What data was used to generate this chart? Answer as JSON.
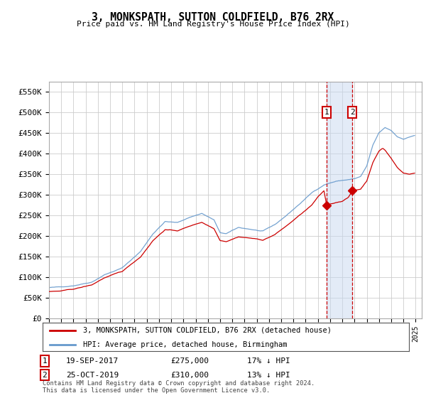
{
  "title": "3, MONKSPATH, SUTTON COLDFIELD, B76 2RX",
  "subtitle": "Price paid vs. HM Land Registry's House Price Index (HPI)",
  "ylim": [
    0,
    575000
  ],
  "yticks": [
    0,
    50000,
    100000,
    150000,
    200000,
    250000,
    300000,
    350000,
    400000,
    450000,
    500000,
    550000
  ],
  "ytick_labels": [
    "£0",
    "£50K",
    "£100K",
    "£150K",
    "£200K",
    "£250K",
    "£300K",
    "£350K",
    "£400K",
    "£450K",
    "£500K",
    "£550K"
  ],
  "legend_line1": "3, MONKSPATH, SUTTON COLDFIELD, B76 2RX (detached house)",
  "legend_line2": "HPI: Average price, detached house, Birmingham",
  "marker1_date": "19-SEP-2017",
  "marker1_price": "£275,000",
  "marker1_hpi": "17% ↓ HPI",
  "marker1_year": 2017.72,
  "marker1_value": 275000,
  "marker2_date": "25-OCT-2019",
  "marker2_price": "£310,000",
  "marker2_hpi": "13% ↓ HPI",
  "marker2_year": 2019.82,
  "marker2_value": 310000,
  "line_color_red": "#cc0000",
  "line_color_blue": "#6699cc",
  "background_color": "#ffffff",
  "grid_color": "#cccccc",
  "footnote1": "Contains HM Land Registry data © Crown copyright and database right 2024.",
  "footnote2": "This data is licensed under the Open Government Licence v3.0."
}
